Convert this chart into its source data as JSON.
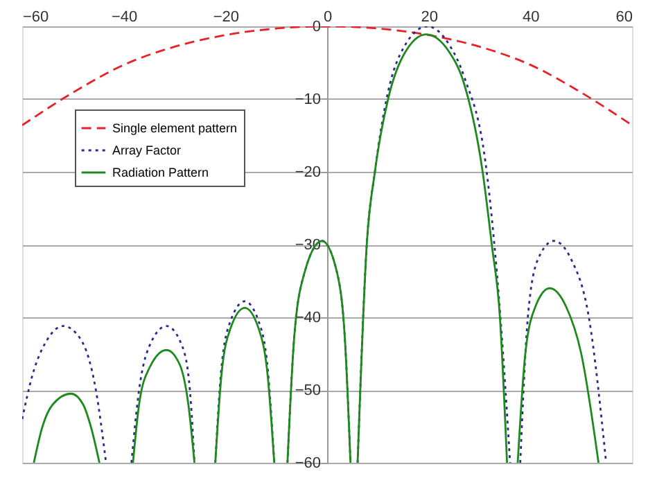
{
  "chart_data": {
    "type": "line",
    "xlim": [
      -60,
      60
    ],
    "xticks": [
      -60,
      -40,
      -20,
      0,
      20,
      40,
      60
    ],
    "ylim": [
      -60,
      0
    ],
    "yticks": [
      -60,
      -50,
      -40,
      -30,
      -20,
      -10,
      0
    ],
    "grid": "y",
    "legend": "top left",
    "marker": "none",
    "series": [
      {
        "name": "Single element pattern",
        "color": "#e8202a",
        "line_style": "dashed",
        "x": [
          -60,
          -50,
          -40,
          -30,
          -20,
          -10,
          0,
          10,
          20,
          30,
          40,
          50,
          60
        ],
        "values": [
          -13.6,
          -9.1,
          -5.3,
          -2.8,
          -1.2,
          -0.3,
          0,
          -0.3,
          -1.2,
          -2.8,
          -5.3,
          -9.1,
          -13.6
        ]
      },
      {
        "name": "Array Factor",
        "color": "#2b2b8c",
        "line_style": "dotted",
        "x": [
          -60,
          -58,
          -55,
          -51.9,
          -48.5,
          -45.5,
          -43.5,
          -40,
          -38.5,
          -37,
          -35,
          -31.6,
          -28.5,
          -27,
          -26.1,
          -24,
          -22,
          -20.8,
          -19,
          -16.2,
          -13.5,
          -11.7,
          -10.4,
          -9,
          -7.8,
          -6.5,
          -4.5,
          -1,
          2,
          3.5,
          4.6,
          5.3,
          6,
          7.8,
          9.4,
          12,
          15,
          19.7,
          24,
          27,
          31.4,
          34.1,
          36,
          37,
          38,
          39.5,
          41.5,
          44.6,
          48,
          51.5,
          54.9
        ],
        "values": [
          -54,
          -48,
          -43,
          -41.2,
          -43,
          -50,
          -60,
          null,
          -60,
          -50,
          -44,
          -41.2,
          -44,
          -50,
          -60,
          null,
          -60,
          -47,
          -40.5,
          -37.8,
          -40.5,
          -47,
          -60,
          null,
          -60,
          -43,
          -34,
          -29.5,
          -34,
          -43,
          -60,
          null,
          -60,
          -30,
          -20,
          -9,
          -3,
          0,
          -2.5,
          -7,
          -20,
          -40,
          -60,
          null,
          -60,
          -40,
          -32,
          -29.5,
          -32,
          -40,
          -60
        ]
      },
      {
        "name": "Radiation Pattern",
        "color": "#1e8a1e",
        "line_style": "solid",
        "x": [
          -57.7,
          -56,
          -54,
          -50.4,
          -48,
          -46.5,
          -44.8,
          -40,
          -38.2,
          -37,
          -35,
          -31.6,
          -29,
          -27.3,
          -26.1,
          -24,
          -22,
          -20.8,
          -19,
          -16.2,
          -13.5,
          -11.7,
          -10.4,
          -9,
          -7.8,
          -6.5,
          -4.5,
          -1,
          2,
          3.5,
          4.6,
          5.3,
          6,
          7.8,
          9.4,
          12,
          15,
          19.5,
          24,
          27,
          30.6,
          32.4,
          34,
          35.4,
          36.5,
          37.5,
          39,
          41,
          43.8,
          47,
          50,
          53.4
        ],
        "values": [
          -60,
          -55,
          -52,
          -50.5,
          -52,
          -55,
          -60,
          null,
          -60,
          -52,
          -47,
          -44.5,
          -46.5,
          -52,
          -60,
          null,
          -60,
          -48,
          -41.5,
          -38.7,
          -41.5,
          -48,
          -60,
          null,
          -60,
          -43,
          -34,
          -29.5,
          -34,
          -43,
          -60,
          null,
          -60,
          -30,
          -20,
          -10,
          -4,
          -1.1,
          -3.5,
          -8,
          -20,
          -30,
          -40,
          -60,
          null,
          -60,
          -45,
          -38.5,
          -36,
          -38.5,
          -45,
          -60
        ]
      }
    ]
  }
}
